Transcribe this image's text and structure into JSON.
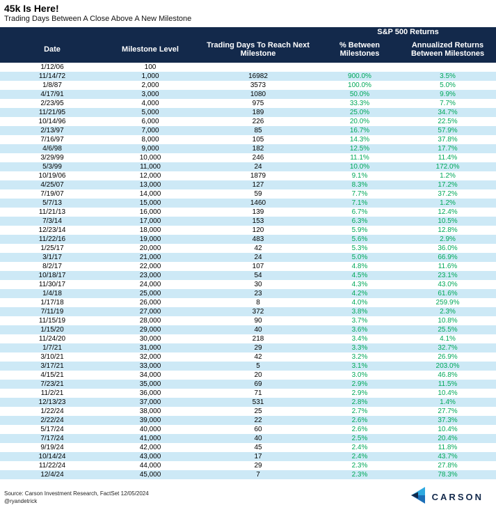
{
  "title": "45k Is Here!",
  "subtitle": "Trading Days Between A Close Above A New Milestone",
  "chart_data": {
    "type": "table",
    "title": "45k Is Here!",
    "subtitle": "Trading Days Between A Close Above A New Milestone",
    "group_header": "S&P 500 Returns",
    "columns": [
      "Date",
      "Milestone Level",
      "Trading Days To Reach Next Milestone",
      "% Between Milestones",
      "Annualized Returns Between Milestones"
    ],
    "rows": [
      [
        "1/12/06",
        "100",
        "",
        "",
        ""
      ],
      [
        "11/14/72",
        "1,000",
        "16982",
        "900.0%",
        "3.5%"
      ],
      [
        "1/8/87",
        "2,000",
        "3573",
        "100.0%",
        "5.0%"
      ],
      [
        "4/17/91",
        "3,000",
        "1080",
        "50.0%",
        "9.9%"
      ],
      [
        "2/23/95",
        "4,000",
        "975",
        "33.3%",
        "7.7%"
      ],
      [
        "11/21/95",
        "5,000",
        "189",
        "25.0%",
        "34.7%"
      ],
      [
        "10/14/96",
        "6,000",
        "226",
        "20.0%",
        "22.5%"
      ],
      [
        "2/13/97",
        "7,000",
        "85",
        "16.7%",
        "57.9%"
      ],
      [
        "7/16/97",
        "8,000",
        "105",
        "14.3%",
        "37.8%"
      ],
      [
        "4/6/98",
        "9,000",
        "182",
        "12.5%",
        "17.7%"
      ],
      [
        "3/29/99",
        "10,000",
        "246",
        "11.1%",
        "11.4%"
      ],
      [
        "5/3/99",
        "11,000",
        "24",
        "10.0%",
        "172.0%"
      ],
      [
        "10/19/06",
        "12,000",
        "1879",
        "9.1%",
        "1.2%"
      ],
      [
        "4/25/07",
        "13,000",
        "127",
        "8.3%",
        "17.2%"
      ],
      [
        "7/19/07",
        "14,000",
        "59",
        "7.7%",
        "37.2%"
      ],
      [
        "5/7/13",
        "15,000",
        "1460",
        "7.1%",
        "1.2%"
      ],
      [
        "11/21/13",
        "16,000",
        "139",
        "6.7%",
        "12.4%"
      ],
      [
        "7/3/14",
        "17,000",
        "153",
        "6.3%",
        "10.5%"
      ],
      [
        "12/23/14",
        "18,000",
        "120",
        "5.9%",
        "12.8%"
      ],
      [
        "11/22/16",
        "19,000",
        "483",
        "5.6%",
        "2.9%"
      ],
      [
        "1/25/17",
        "20,000",
        "42",
        "5.3%",
        "36.0%"
      ],
      [
        "3/1/17",
        "21,000",
        "24",
        "5.0%",
        "66.9%"
      ],
      [
        "8/2/17",
        "22,000",
        "107",
        "4.8%",
        "11.6%"
      ],
      [
        "10/18/17",
        "23,000",
        "54",
        "4.5%",
        "23.1%"
      ],
      [
        "11/30/17",
        "24,000",
        "30",
        "4.3%",
        "43.0%"
      ],
      [
        "1/4/18",
        "25,000",
        "23",
        "4.2%",
        "61.6%"
      ],
      [
        "1/17/18",
        "26,000",
        "8",
        "4.0%",
        "259.9%"
      ],
      [
        "7/11/19",
        "27,000",
        "372",
        "3.8%",
        "2.3%"
      ],
      [
        "11/15/19",
        "28,000",
        "90",
        "3.7%",
        "10.8%"
      ],
      [
        "1/15/20",
        "29,000",
        "40",
        "3.6%",
        "25.5%"
      ],
      [
        "11/24/20",
        "30,000",
        "218",
        "3.4%",
        "4.1%"
      ],
      [
        "1/7/21",
        "31,000",
        "29",
        "3.3%",
        "32.7%"
      ],
      [
        "3/10/21",
        "32,000",
        "42",
        "3.2%",
        "26.9%"
      ],
      [
        "3/17/21",
        "33,000",
        "5",
        "3.1%",
        "203.0%"
      ],
      [
        "4/15/21",
        "34,000",
        "20",
        "3.0%",
        "46.8%"
      ],
      [
        "7/23/21",
        "35,000",
        "69",
        "2.9%",
        "11.5%"
      ],
      [
        "11/2/21",
        "36,000",
        "71",
        "2.9%",
        "10.4%"
      ],
      [
        "12/13/23",
        "37,000",
        "531",
        "2.8%",
        "1.4%"
      ],
      [
        "1/22/24",
        "38,000",
        "25",
        "2.7%",
        "27.7%"
      ],
      [
        "2/22/24",
        "39,000",
        "22",
        "2.6%",
        "37.3%"
      ],
      [
        "5/17/24",
        "40,000",
        "60",
        "2.6%",
        "10.4%"
      ],
      [
        "7/17/24",
        "41,000",
        "40",
        "2.5%",
        "20.4%"
      ],
      [
        "9/19/24",
        "42,000",
        "45",
        "2.4%",
        "11.8%"
      ],
      [
        "10/14/24",
        "43,000",
        "17",
        "2.4%",
        "43.7%"
      ],
      [
        "11/22/24",
        "44,000",
        "29",
        "2.3%",
        "27.8%"
      ],
      [
        "12/4/24",
        "45,000",
        "7",
        "2.3%",
        "78.3%"
      ]
    ]
  },
  "footer": {
    "source": "Source: Carson Investment Research, FactSet 12/05/2024",
    "handle": "@ryandetrick",
    "logo_text": "CARSON"
  },
  "colors": {
    "header_navy": "#13294B",
    "stripe_blue": "#CDE9F6",
    "value_green": "#00A859",
    "logo_light_blue": "#2FA9E0",
    "logo_dark_blue": "#1C6FB8"
  }
}
